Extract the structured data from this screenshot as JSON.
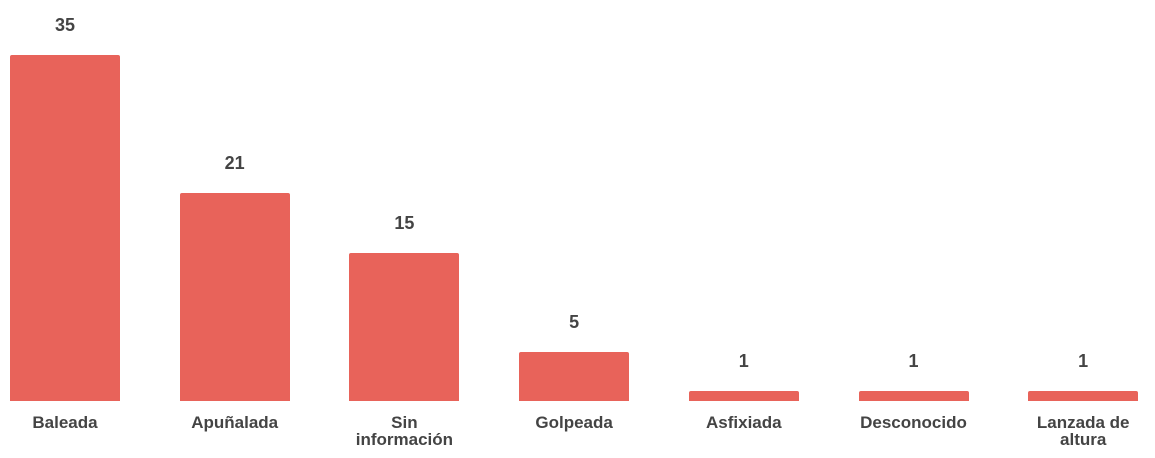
{
  "chart_data": {
    "type": "bar",
    "categories": [
      "Baleada",
      "Apuñalada",
      "Sin información",
      "Golpeada",
      "Asfixiada",
      "Desconocido",
      "Lanzada de altura"
    ],
    "values": [
      35,
      21,
      15,
      5,
      1,
      1,
      1
    ],
    "color": "#e8635a",
    "ylim": [
      0,
      35
    ]
  }
}
